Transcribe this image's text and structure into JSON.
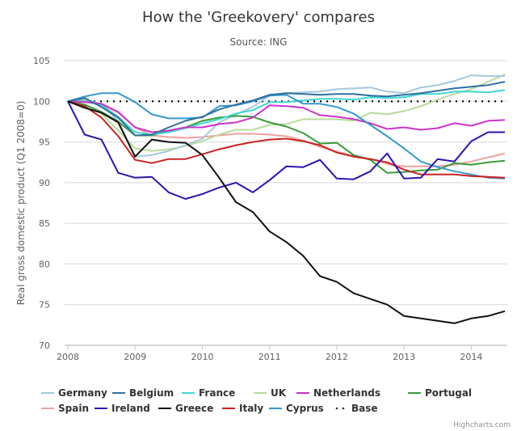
{
  "chart_data": {
    "type": "line",
    "title": "How the 'Greekovery' compares",
    "subtitle": "Source: ING",
    "xlabel": "",
    "ylabel": "Real gross domestic product (Q1 2008=0)",
    "xlim": [
      2008,
      2014.5
    ],
    "ylim": [
      70,
      105
    ],
    "x_ticks": [
      2008,
      2009,
      2010,
      2011,
      2012,
      2013,
      2014
    ],
    "x_tick_labels": [
      "2008",
      "2009",
      "2010",
      "2011",
      "2012",
      "2013",
      "2014"
    ],
    "y_ticks": [
      70,
      75,
      80,
      85,
      90,
      95,
      100,
      105
    ],
    "y_tick_labels": [
      "70",
      "75",
      "80",
      "85",
      "90",
      "95",
      "100",
      "105"
    ],
    "grid": true,
    "legend_position": "bottom",
    "x": [
      2008.0,
      2008.25,
      2008.5,
      2008.75,
      2009.0,
      2009.25,
      2009.5,
      2009.75,
      2010.0,
      2010.25,
      2010.5,
      2010.75,
      2011.0,
      2011.25,
      2011.5,
      2011.75,
      2012.0,
      2012.25,
      2012.5,
      2012.75,
      2013.0,
      2013.25,
      2013.5,
      2013.75,
      2014.0,
      2014.25,
      2014.5
    ],
    "series": [
      {
        "name": "Germany",
        "color": "#a6c8de",
        "dash": false,
        "values": [
          100,
          100.3,
          99.6,
          97.6,
          93.2,
          93.4,
          93.9,
          94.6,
          95.4,
          97.4,
          98.4,
          99.3,
          100.7,
          101.0,
          101.1,
          101.2,
          101.5,
          101.6,
          101.7,
          101.2,
          101.0,
          101.7,
          102.0,
          102.5,
          103.2,
          103.1,
          103.1
        ]
      },
      {
        "name": "Belgium",
        "color": "#2f6f9f",
        "dash": false,
        "values": [
          100,
          100.4,
          99.3,
          98.0,
          95.8,
          95.9,
          96.8,
          97.6,
          98.1,
          99.0,
          99.6,
          100.1,
          100.8,
          101.0,
          100.9,
          100.8,
          100.9,
          100.9,
          100.7,
          100.6,
          100.8,
          101.0,
          101.3,
          101.6,
          101.8,
          102.0,
          102.4
        ]
      },
      {
        "name": "France",
        "color": "#3fd8d0",
        "dash": false,
        "values": [
          100,
          100.0,
          99.5,
          98.1,
          96.2,
          95.9,
          96.2,
          96.7,
          97.3,
          97.8,
          98.5,
          98.9,
          99.9,
          99.9,
          100.1,
          100.3,
          100.3,
          100.2,
          100.5,
          100.4,
          100.5,
          100.9,
          100.9,
          101.2,
          101.2,
          101.1,
          101.4
        ]
      },
      {
        "name": "UK",
        "color": "#b8dc9a",
        "dash": false,
        "values": [
          100,
          99.6,
          98.5,
          96.4,
          94.2,
          93.9,
          94.1,
          94.5,
          95.1,
          95.9,
          96.5,
          96.5,
          97.1,
          97.2,
          97.8,
          97.8,
          97.8,
          97.6,
          98.6,
          98.4,
          98.8,
          99.4,
          100.2,
          100.9,
          101.5,
          102.4,
          103.3
        ]
      },
      {
        "name": "Netherlands",
        "color": "#cc33cc",
        "dash": false,
        "values": [
          100,
          99.9,
          99.7,
          98.7,
          96.8,
          96.2,
          96.4,
          96.8,
          96.8,
          97.2,
          97.4,
          98.0,
          99.5,
          99.4,
          99.2,
          98.3,
          98.1,
          97.8,
          97.3,
          96.6,
          96.8,
          96.5,
          96.7,
          97.3,
          97.0,
          97.6,
          97.7
        ]
      },
      {
        "name": "Portugal",
        "color": "#3b9a3b",
        "dash": false,
        "values": [
          100,
          99.6,
          98.7,
          97.5,
          95.8,
          95.8,
          96.4,
          96.8,
          97.6,
          98.0,
          98.2,
          98.1,
          97.4,
          96.9,
          96.1,
          94.8,
          94.9,
          93.4,
          92.8,
          91.2,
          91.3,
          91.5,
          91.6,
          92.4,
          92.2,
          92.5,
          92.7
        ]
      },
      {
        "name": "Spain",
        "color": "#f0a0a0",
        "dash": false,
        "values": [
          100,
          100.2,
          99.6,
          98.6,
          96.8,
          95.8,
          95.6,
          95.5,
          95.6,
          95.8,
          96.0,
          96.0,
          95.9,
          95.7,
          95.2,
          94.4,
          93.8,
          93.3,
          92.9,
          92.3,
          92.0,
          92.0,
          92.0,
          92.2,
          92.6,
          93.1,
          93.6
        ]
      },
      {
        "name": "Ireland",
        "color": "#2a16b0",
        "dash": false,
        "values": [
          100,
          95.9,
          95.3,
          91.2,
          90.6,
          90.7,
          88.8,
          88.0,
          88.6,
          89.4,
          90.0,
          88.8,
          90.3,
          92.0,
          91.9,
          92.8,
          90.5,
          90.4,
          91.4,
          93.6,
          90.5,
          90.6,
          92.9,
          92.6,
          95.1,
          96.2,
          96.2
        ]
      },
      {
        "name": "Greece",
        "color": "#111111",
        "dash": false,
        "values": [
          100,
          99.2,
          98.6,
          97.4,
          93.2,
          95.3,
          95.0,
          94.9,
          93.4,
          90.6,
          87.6,
          86.4,
          84.0,
          82.7,
          81.0,
          78.5,
          77.8,
          76.4,
          75.7,
          75.0,
          73.6,
          73.3,
          73.0,
          72.7,
          73.3,
          73.6,
          74.2
        ]
      },
      {
        "name": "Italy",
        "color": "#cc2222",
        "dash": false,
        "values": [
          100,
          99.4,
          98.0,
          95.7,
          92.8,
          92.4,
          92.9,
          92.9,
          93.5,
          94.1,
          94.6,
          95.0,
          95.3,
          95.4,
          95.1,
          94.6,
          93.7,
          93.2,
          92.9,
          92.5,
          91.6,
          91.0,
          91.0,
          91.0,
          90.8,
          90.7,
          90.6
        ]
      },
      {
        "name": "Cyprus",
        "color": "#3399cc",
        "dash": false,
        "values": [
          100,
          100.6,
          101.0,
          101.0,
          99.9,
          98.4,
          97.9,
          97.9,
          98.0,
          99.4,
          99.5,
          100.0,
          100.7,
          100.8,
          99.7,
          99.7,
          99.3,
          98.5,
          97.1,
          95.7,
          94.2,
          92.6,
          91.9,
          91.4,
          91.0,
          90.6,
          90.5
        ]
      },
      {
        "name": "Base",
        "color": "#000000",
        "dash": true,
        "values": [
          100,
          100,
          100,
          100,
          100,
          100,
          100,
          100,
          100,
          100,
          100,
          100,
          100,
          100,
          100,
          100,
          100,
          100,
          100,
          100,
          100,
          100,
          100,
          100,
          100,
          100,
          100
        ]
      }
    ],
    "credits": "Highcharts.com"
  }
}
